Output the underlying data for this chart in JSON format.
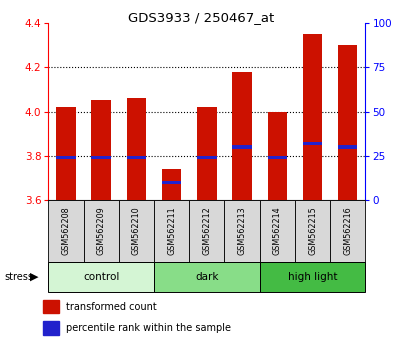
{
  "title": "GDS3933 / 250467_at",
  "samples": [
    "GSM562208",
    "GSM562209",
    "GSM562210",
    "GSM562211",
    "GSM562212",
    "GSM562213",
    "GSM562214",
    "GSM562215",
    "GSM562216"
  ],
  "transformed_counts": [
    4.02,
    4.05,
    4.06,
    3.74,
    4.02,
    4.18,
    4.0,
    4.35,
    4.3
  ],
  "percentile_ranks": [
    24,
    24,
    24,
    10,
    24,
    30,
    24,
    32,
    30
  ],
  "groups": [
    {
      "label": "control",
      "indices": [
        0,
        1,
        2
      ],
      "color": "#d4f5d4"
    },
    {
      "label": "dark",
      "indices": [
        3,
        4,
        5
      ],
      "color": "#88dd88"
    },
    {
      "label": "high light",
      "indices": [
        6,
        7,
        8
      ],
      "color": "#44bb44"
    }
  ],
  "ylim_left": [
    3.6,
    4.4
  ],
  "ylim_right": [
    0,
    100
  ],
  "yticks_left": [
    3.6,
    3.8,
    4.0,
    4.2,
    4.4
  ],
  "yticks_right": [
    0,
    25,
    50,
    75,
    100
  ],
  "bar_color": "#cc1100",
  "percentile_color": "#2222cc",
  "sample_bg_color": "#d8d8d8",
  "bar_width": 0.55,
  "grid_yticks": [
    3.8,
    4.0,
    4.2
  ]
}
